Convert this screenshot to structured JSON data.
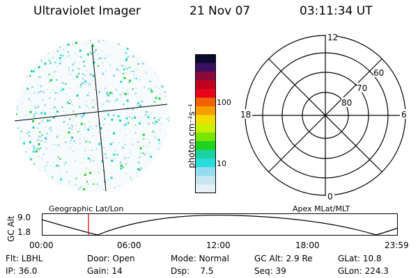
{
  "header": {
    "title": "Ultraviolet Imager",
    "date": "21 Nov 07",
    "time": "03:11:34 UT"
  },
  "colorbar": {
    "unit_label": "photon cm⁻²s⁻¹",
    "ticks": [
      "100",
      "10"
    ],
    "colors": [
      "#0a0a2a",
      "#3b1060",
      "#8a0a3a",
      "#c0001c",
      "#e8001c",
      "#f06400",
      "#f5a000",
      "#f5dc00",
      "#c8f000",
      "#78e600",
      "#1ed21e",
      "#19d2a0",
      "#28dcdc",
      "#96dcf0",
      "#c8e6f0",
      "#e6f0f5"
    ]
  },
  "polar_plot": {
    "clock_labels": [
      "12",
      "18",
      "6",
      "0"
    ],
    "lat_labels": [
      "60",
      "70",
      "80"
    ]
  },
  "map_labels": {
    "left": "Geographic Lat/Lon",
    "right": "Apex MLat/MLT"
  },
  "altitude_strip": {
    "axis_title": "GC Alt",
    "y_top": "9.0",
    "y_bottom": "1.8",
    "x_ticks": [
      "00:00",
      "06:00",
      "12:00",
      "18:00",
      "23:59"
    ]
  },
  "info": {
    "flt": "Flt: LBHL",
    "door": "Door: Open",
    "mode": "Mode: Normal",
    "gc_alt": "GC Alt: 2.9 Re",
    "glat": "GLat: 10.8",
    "ip": "IP: 36.0",
    "gain": "Gain: 14",
    "dsp": "Dsp:    7.5",
    "seq": "Seq: 39",
    "glon": "GLon: 224.3"
  }
}
